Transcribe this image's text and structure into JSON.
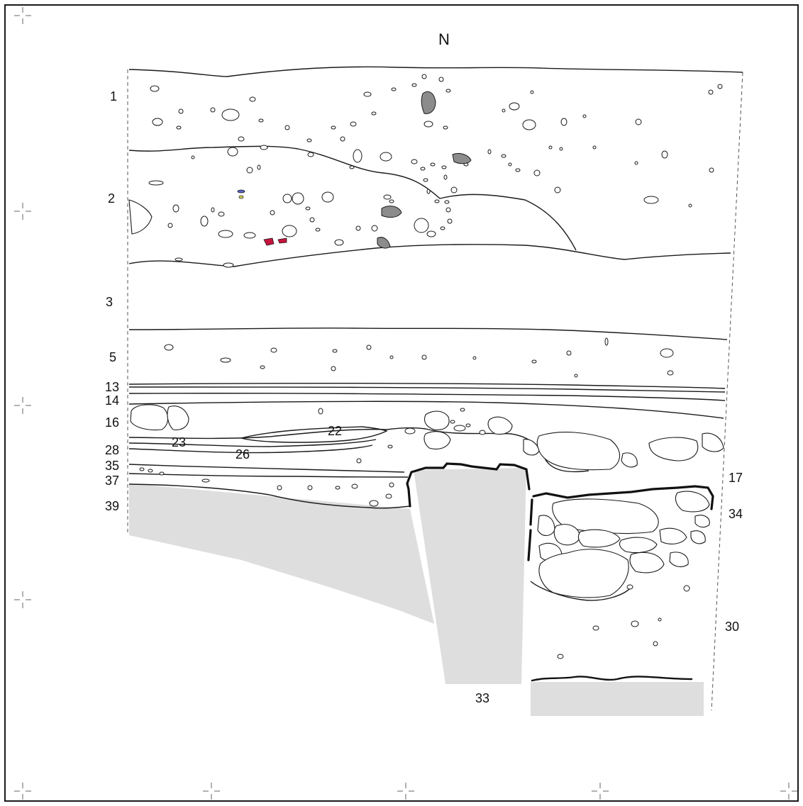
{
  "north_label": "N",
  "layers": [
    {
      "id": "1",
      "label": "1"
    },
    {
      "id": "2",
      "label": "2"
    },
    {
      "id": "3",
      "label": "3"
    },
    {
      "id": "5",
      "label": "5"
    },
    {
      "id": "13",
      "label": "13"
    },
    {
      "id": "14",
      "label": "14"
    },
    {
      "id": "16",
      "label": "16"
    },
    {
      "id": "23",
      "label": "23"
    },
    {
      "id": "22",
      "label": "22"
    },
    {
      "id": "26",
      "label": "26"
    },
    {
      "id": "28",
      "label": "28"
    },
    {
      "id": "35",
      "label": "35"
    },
    {
      "id": "37",
      "label": "37"
    },
    {
      "id": "39",
      "label": "39"
    },
    {
      "id": "17",
      "label": "17"
    },
    {
      "id": "34",
      "label": "34"
    },
    {
      "id": "30",
      "label": "30"
    },
    {
      "id": "33",
      "label": "33"
    }
  ],
  "colors": {
    "line": "#1a1a1a",
    "fill_gray": "#dedede",
    "stone_dark": "#8c8c8c",
    "find_red": "#c8143c",
    "find_blue": "#5a64c8",
    "find_yellow": "#d7d75a"
  }
}
